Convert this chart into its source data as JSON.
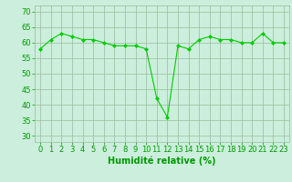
{
  "x": [
    0,
    1,
    2,
    3,
    4,
    5,
    6,
    7,
    8,
    9,
    10,
    11,
    12,
    13,
    14,
    15,
    16,
    17,
    18,
    19,
    20,
    21,
    22,
    23
  ],
  "y": [
    58,
    61,
    63,
    62,
    61,
    61,
    60,
    59,
    59,
    59,
    58,
    42,
    36,
    59,
    58,
    61,
    62,
    61,
    61,
    60,
    60,
    63,
    60,
    60
  ],
  "line_color": "#00cc00",
  "marker": "D",
  "marker_size": 2,
  "bg_color": "#cceedd",
  "grid_color": "#99bb99",
  "tick_color": "#009900",
  "label_color": "#009900",
  "xlabel": "Humidité relative (%)",
  "ylim": [
    28,
    72
  ],
  "xlim": [
    -0.5,
    23.5
  ],
  "yticks": [
    30,
    35,
    40,
    45,
    50,
    55,
    60,
    65,
    70
  ],
  "xticks": [
    0,
    1,
    2,
    3,
    4,
    5,
    6,
    7,
    8,
    9,
    10,
    11,
    12,
    13,
    14,
    15,
    16,
    17,
    18,
    19,
    20,
    21,
    22,
    23
  ],
  "xlabel_fontsize": 7,
  "tick_fontsize": 6
}
